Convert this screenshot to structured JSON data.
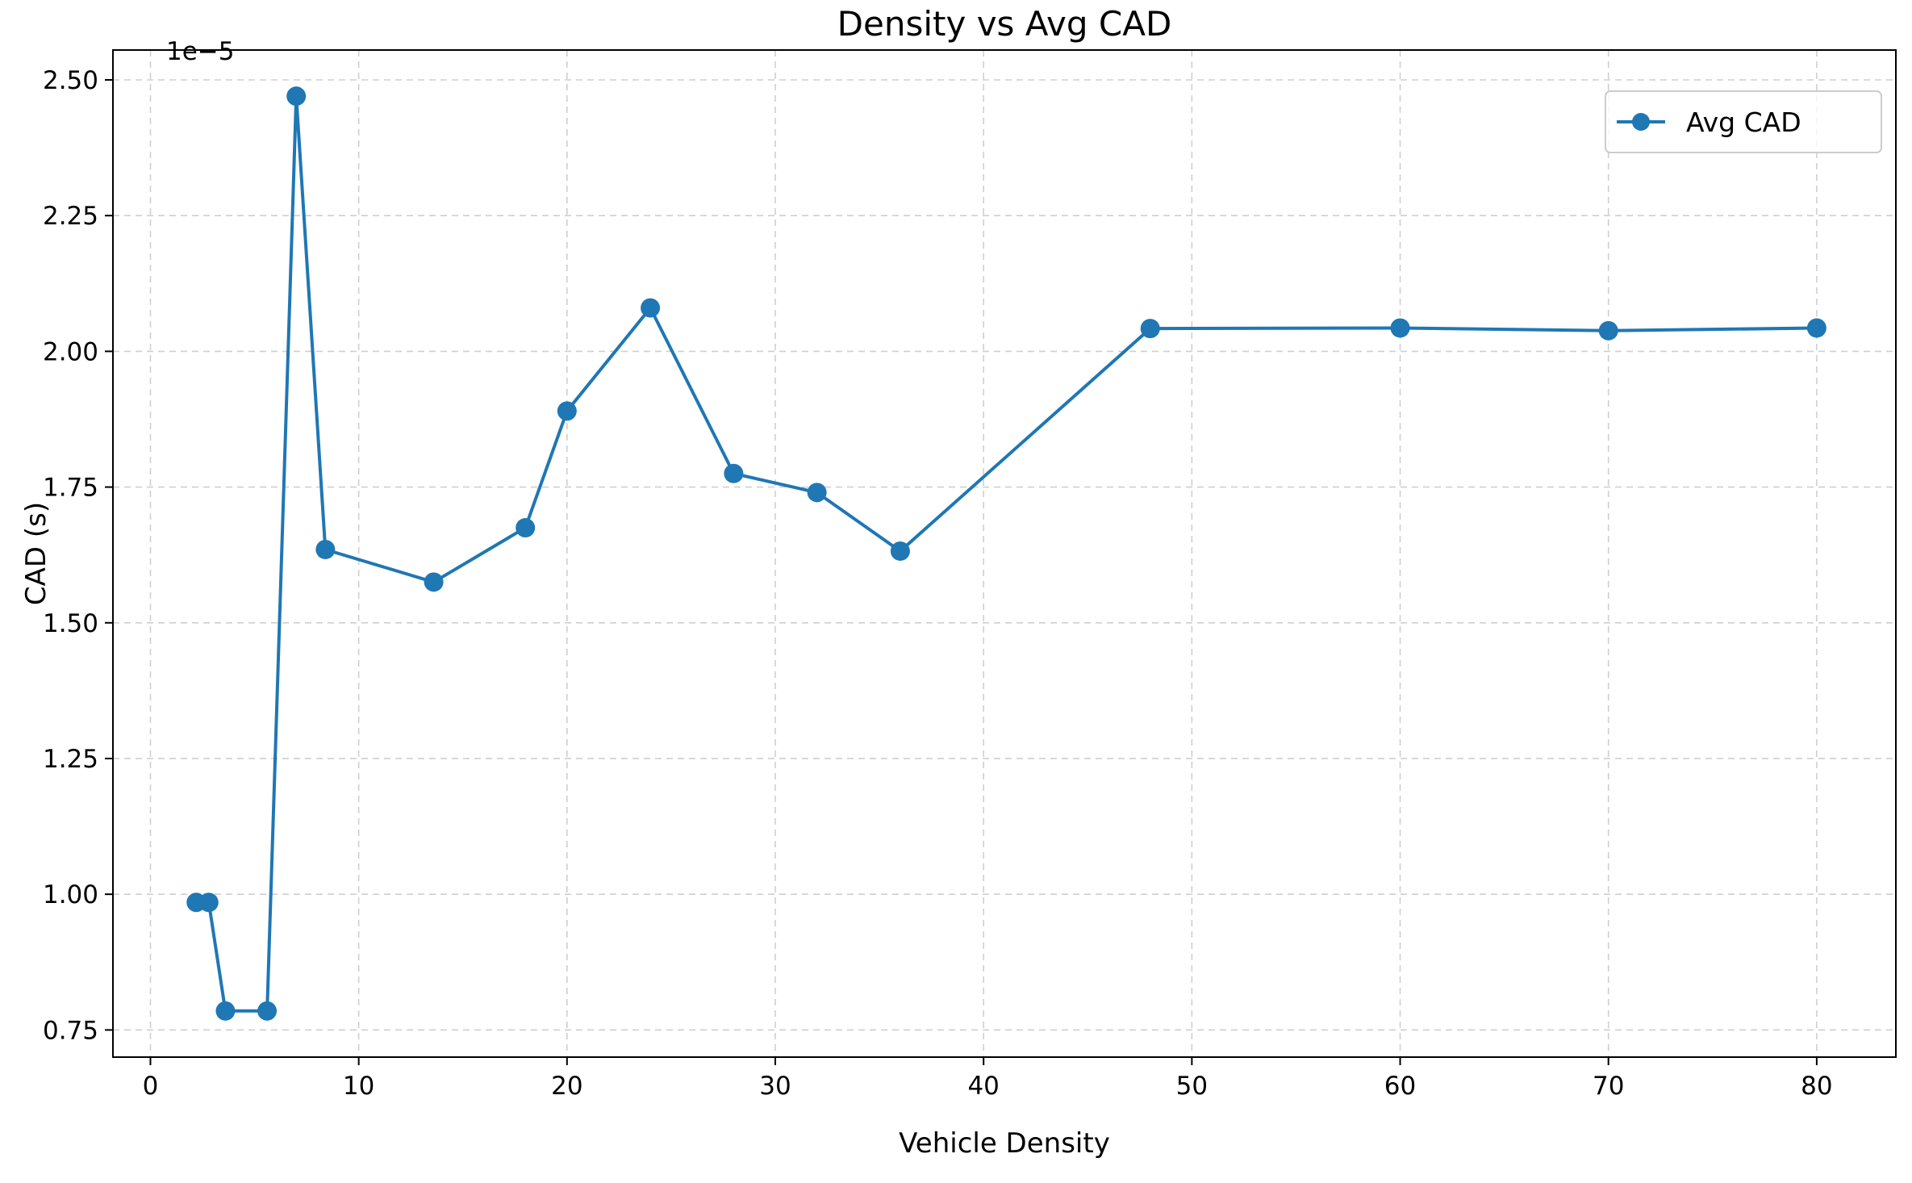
{
  "chart_data": {
    "type": "line",
    "title": "Density vs Avg CAD",
    "xlabel": "Vehicle Density",
    "ylabel": "CAD (s)",
    "y_offset_label": "1e−5",
    "xlim": [
      -1.8,
      83.8
    ],
    "ylim": [
      0.7,
      2.555
    ],
    "x_ticks": [
      0,
      10,
      20,
      30,
      40,
      50,
      60,
      70,
      80
    ],
    "x_tick_labels": [
      "0",
      "10",
      "20",
      "30",
      "40",
      "50",
      "60",
      "70",
      "80"
    ],
    "y_ticks": [
      0.75,
      1.0,
      1.25,
      1.5,
      1.75,
      2.0,
      2.25,
      2.5
    ],
    "y_tick_labels": [
      "0.75",
      "1.00",
      "1.25",
      "1.50",
      "1.75",
      "2.00",
      "2.25",
      "2.50"
    ],
    "grid": true,
    "legend_position": "top-right",
    "series": [
      {
        "name": "Avg CAD",
        "color": "#1f77b4",
        "marker": "circle",
        "x": [
          2.2,
          2.8,
          3.6,
          5.6,
          7.0,
          8.4,
          13.6,
          18.0,
          20.0,
          24.0,
          28.0,
          32.0,
          36.0,
          48.0,
          60.0,
          70.0,
          80.0
        ],
        "y": [
          0.985,
          0.985,
          0.785,
          0.785,
          2.47,
          1.635,
          1.575,
          1.675,
          1.89,
          2.08,
          1.775,
          1.74,
          1.632,
          2.042,
          2.043,
          2.038,
          2.043
        ]
      }
    ]
  }
}
